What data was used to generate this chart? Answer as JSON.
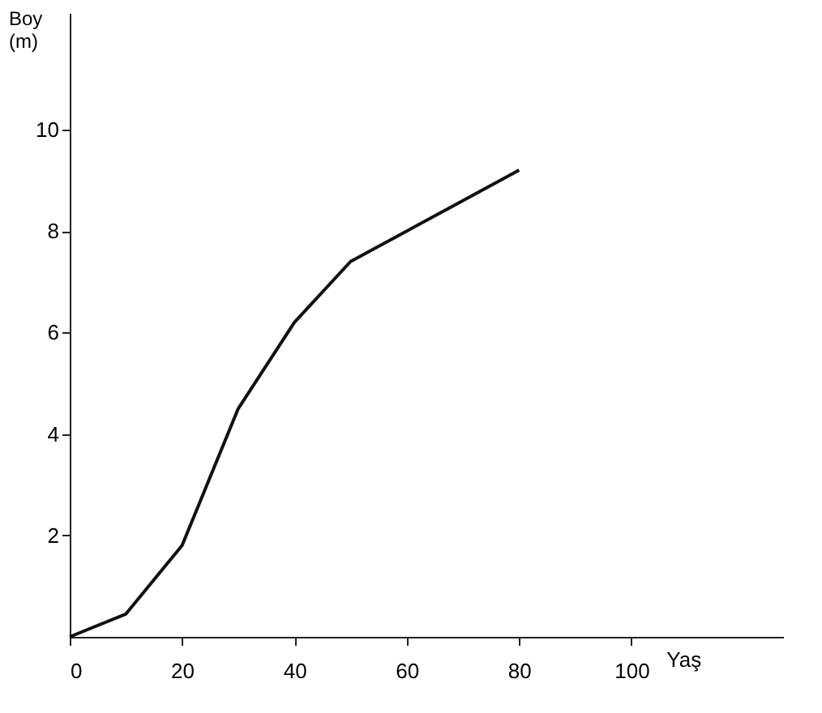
{
  "chart_data": {
    "type": "line",
    "xlabel": "Yaş",
    "ylabel": "Boy (m)",
    "x": [
      0,
      10,
      20,
      30,
      40,
      50,
      80
    ],
    "values": [
      0,
      0.45,
      1.8,
      4.5,
      6.2,
      7.4,
      9.2
    ],
    "color": "#111111",
    "xlim": [
      0,
      127
    ],
    "ylim": [
      0,
      12.3
    ],
    "xticks": [
      0,
      20,
      40,
      60,
      80,
      100
    ],
    "yticks": [
      2,
      4,
      6,
      8,
      10
    ],
    "grid": false,
    "marker": "none",
    "line_style": "solid"
  }
}
